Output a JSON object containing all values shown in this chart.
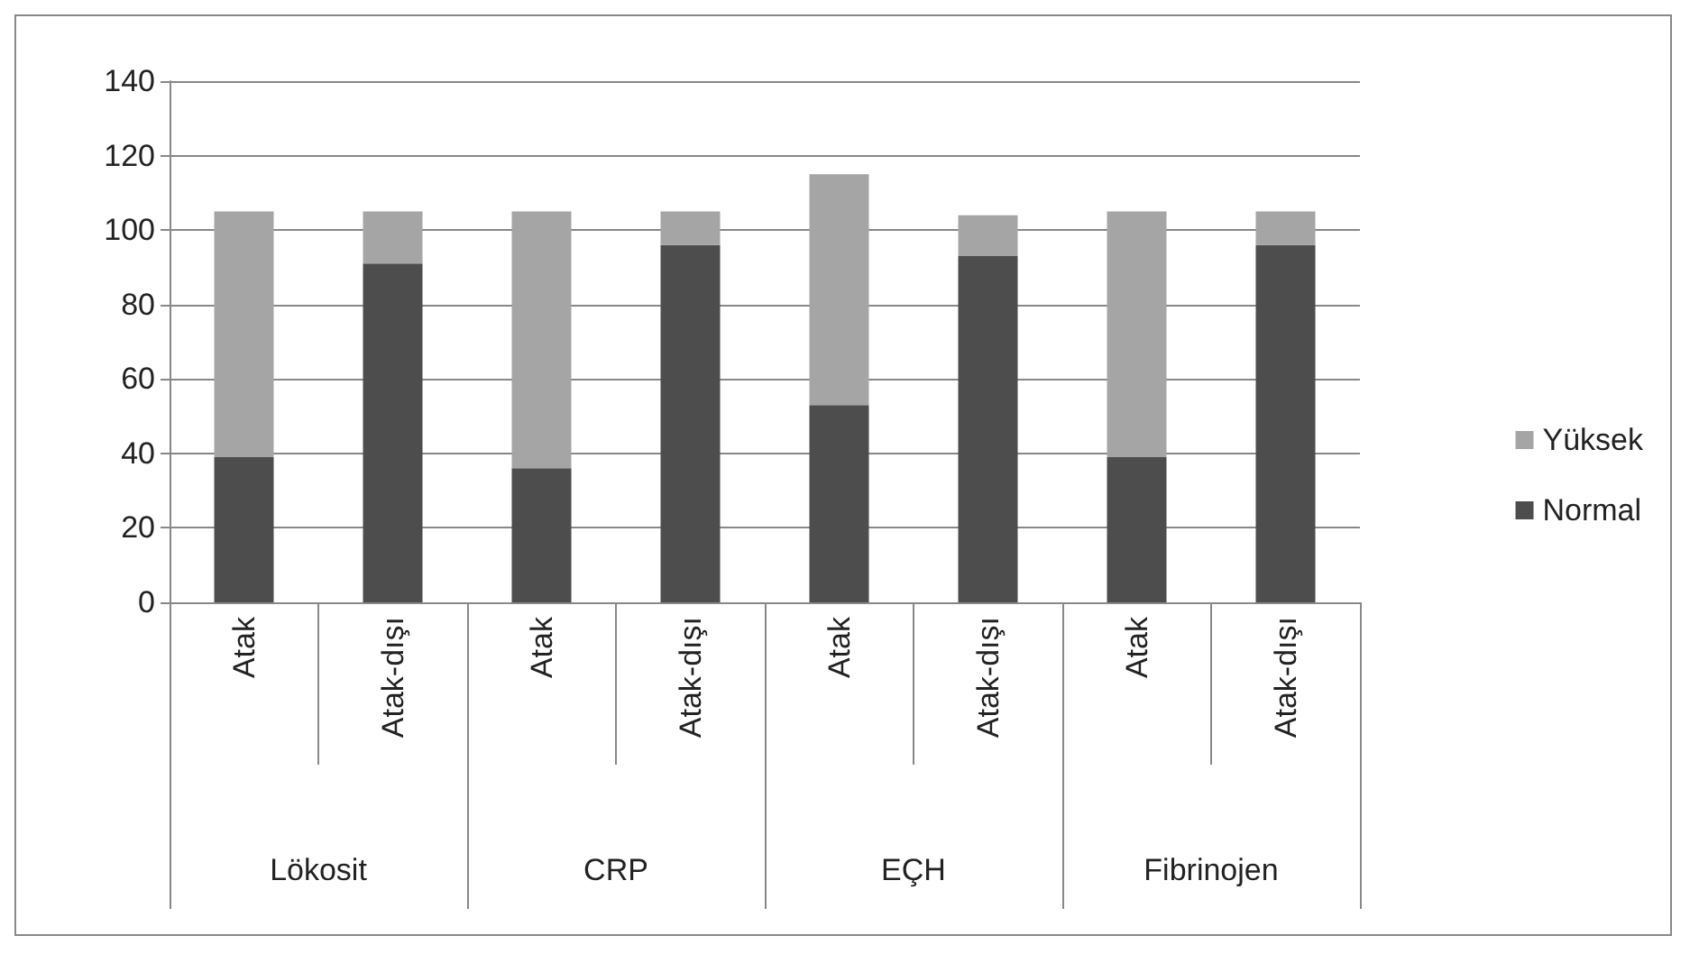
{
  "chart_data": {
    "type": "bar",
    "stacked": true,
    "categories": [
      "Atak",
      "Atak-dışı",
      "Atak",
      "Atak-dışı",
      "Atak",
      "Atak-dışı",
      "Atak",
      "Atak-dışı"
    ],
    "series": [
      {
        "name": "Normal",
        "color": "#4d4d4d",
        "values": [
          39,
          91,
          36,
          96,
          53,
          93,
          39,
          96
        ]
      },
      {
        "name": "Yüksek",
        "color": "#a5a5a5",
        "values": [
          66,
          14,
          69,
          9,
          62,
          11,
          66,
          9
        ]
      }
    ],
    "annotations": [
      "Lökosit",
      "CRP",
      "EÇH",
      "Fibrinojen"
    ],
    "ylim": [
      0,
      140
    ],
    "yticks": [
      0,
      20,
      40,
      60,
      80,
      100,
      120,
      140
    ],
    "grid": "y",
    "legend": "right"
  }
}
